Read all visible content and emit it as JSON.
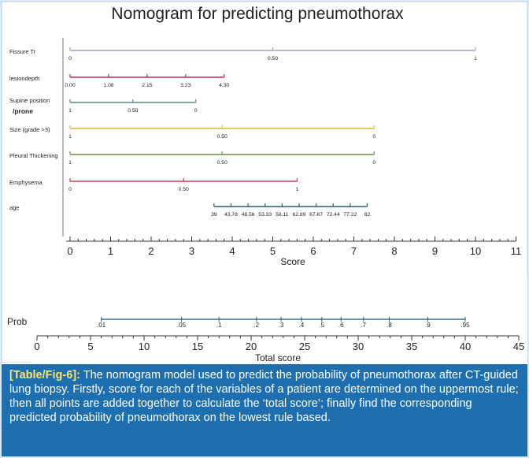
{
  "chart_data": [
    {
      "type": "nomogram",
      "title": "Nomogram for predicting pneumothorax",
      "colors": {
        "fissure": "#a79ad6",
        "lesiondepth": "#c6265a",
        "supine": "#5f8a8a",
        "size": "#eab232",
        "pleural": "#6f8f3e",
        "emphysema": "#c6404c",
        "age": "#2c5b7a"
      },
      "variables": [
        {
          "label": "Fissure Tr",
          "color": "fissure",
          "ticks": [
            {
              "score": 0,
              "label": "0"
            },
            {
              "score": 5,
              "label": "0.50"
            },
            {
              "score": 10,
              "label": "1"
            }
          ]
        },
        {
          "label": "lesiondepth",
          "color": "lesiondepth",
          "ticks": [
            {
              "score": 0,
              "label": "0.00"
            },
            {
              "score": 0.95,
              "label": "1.08"
            },
            {
              "score": 1.9,
              "label": "2.15"
            },
            {
              "score": 2.85,
              "label": "3.23"
            },
            {
              "score": 3.8,
              "label": "4.30"
            }
          ]
        },
        {
          "label": "Supine position",
          "label2": "/prone",
          "color": "supine",
          "ticks": [
            {
              "score": 0,
              "label": "1"
            },
            {
              "score": 1.55,
              "label": "0.50"
            },
            {
              "score": 3.1,
              "label": "0"
            }
          ]
        },
        {
          "label": "Size (grade >3)",
          "color": "size",
          "ticks": [
            {
              "score": 0,
              "label": "1"
            },
            {
              "score": 3.75,
              "label": "0.50"
            },
            {
              "score": 7.5,
              "label": "0"
            }
          ]
        },
        {
          "label": "Pleural Thickening",
          "color": "pleural",
          "ticks": [
            {
              "score": 0,
              "label": "1"
            },
            {
              "score": 3.75,
              "label": "0.50"
            },
            {
              "score": 7.5,
              "label": "0"
            }
          ]
        },
        {
          "label": "Emphysema",
          "color": "emphysema",
          "ticks": [
            {
              "score": 0,
              "label": "0"
            },
            {
              "score": 2.8,
              "label": "0.50"
            },
            {
              "score": 5.6,
              "label": "1"
            }
          ]
        },
        {
          "label": "age",
          "color": "age",
          "ticks": [
            {
              "score": 3.55,
              "label": "39"
            },
            {
              "score": 3.97,
              "label": "43.78"
            },
            {
              "score": 4.39,
              "label": "48.56"
            },
            {
              "score": 4.81,
              "label": "53.33"
            },
            {
              "score": 5.23,
              "label": "58.11"
            },
            {
              "score": 5.65,
              "label": "62.89"
            },
            {
              "score": 6.07,
              "label": "67.67"
            },
            {
              "score": 6.49,
              "label": "72.44"
            },
            {
              "score": 6.91,
              "label": "77.22"
            },
            {
              "score": 7.33,
              "label": "82"
            }
          ]
        }
      ],
      "score_axis": {
        "xlabel": "Score",
        "xlim": [
          0,
          11
        ],
        "ticks": [
          "0",
          "1",
          "2",
          "3",
          "4",
          "5",
          "6",
          "7",
          "8",
          "9",
          "10",
          "11"
        ]
      },
      "prob_axis": {
        "label": "Prob",
        "points": [
          {
            "total": 6.0,
            "label": ".01"
          },
          {
            "total": 13.5,
            "label": ".05"
          },
          {
            "total": 17.0,
            "label": ".1"
          },
          {
            "total": 20.5,
            "label": ".2"
          },
          {
            "total": 22.8,
            "label": ".3"
          },
          {
            "total": 24.7,
            "label": ".4"
          },
          {
            "total": 26.6,
            "label": ".5"
          },
          {
            "total": 28.4,
            "label": ".6"
          },
          {
            "total": 30.5,
            "label": ".7"
          },
          {
            "total": 32.9,
            "label": ".8"
          },
          {
            "total": 36.5,
            "label": ".9"
          },
          {
            "total": 40.0,
            "label": ".95"
          }
        ]
      },
      "total_axis": {
        "xlabel": "Total score",
        "xlim": [
          0,
          45
        ],
        "ticks": [
          "0",
          "5",
          "10",
          "15",
          "20",
          "25",
          "30",
          "35",
          "40",
          "45"
        ]
      }
    }
  ],
  "caption": {
    "lead": "[Table/Fig-6]:",
    "text": " The nomogram model used to predict the probability of pneumothorax after CT-guided lung biopsy. Firstly, score for each of the variables of a patient are determined on the uppermost rule; then all points are added together to calculate the ‘total score’; finally find the corresponding predicted probability of pneumothorax on the lowest rule based."
  }
}
